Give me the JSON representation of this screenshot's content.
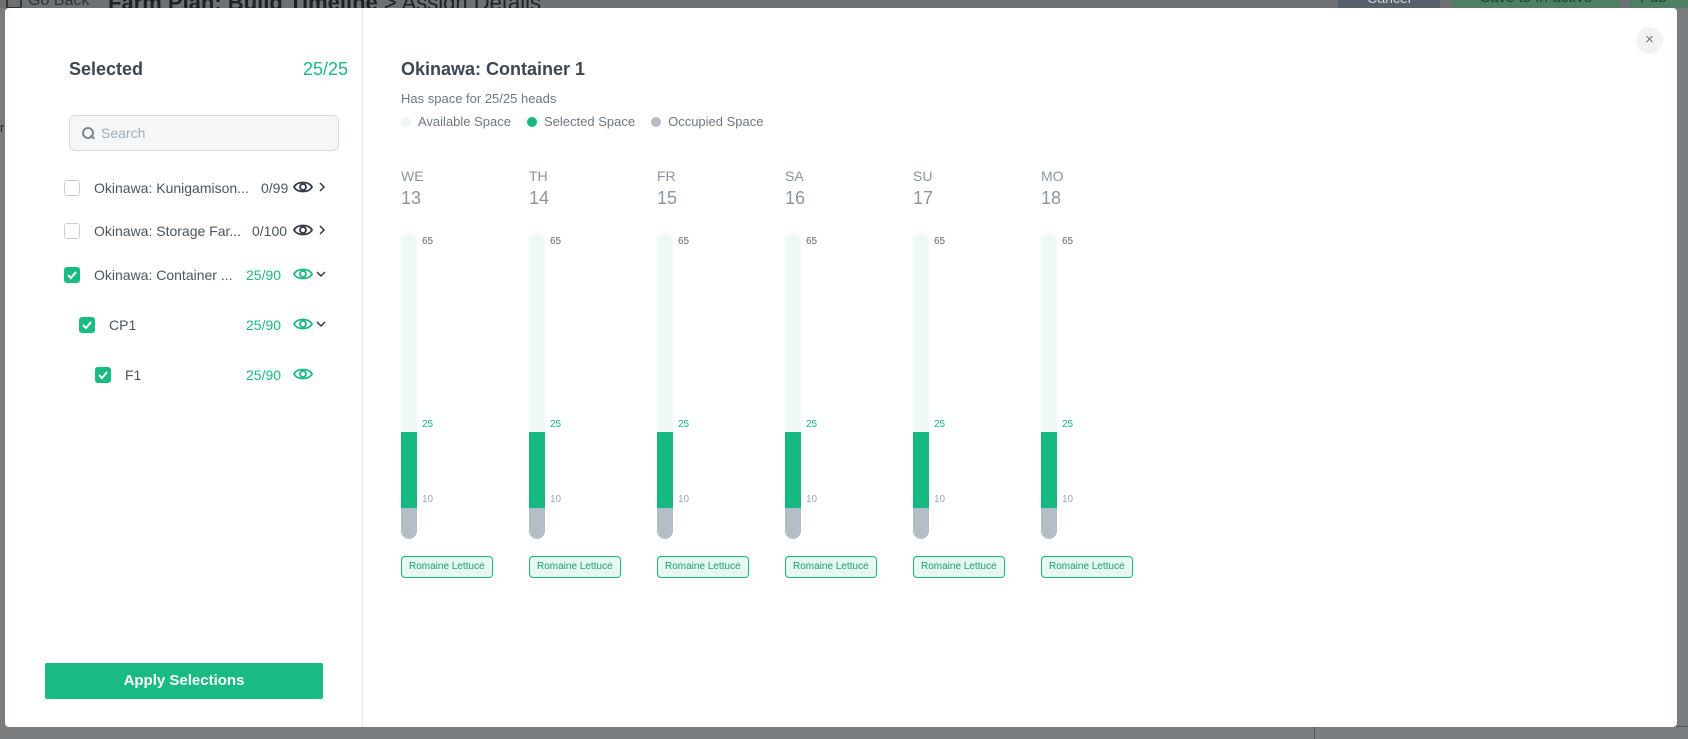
{
  "background": {
    "go_back": "Go Back",
    "title_bold": "Farm Plan: Build Timeline",
    "title_rest": " > Assign Details",
    "cancel": "Cancel",
    "save": "Save to In-active",
    "publish": "Pub",
    "edge_text": "r"
  },
  "modal": {
    "close": "×",
    "left": {
      "title": "Selected",
      "count": "25/25",
      "search_placeholder": "Search",
      "items": [
        {
          "label": "Okinawa: Kunigamison...",
          "count": "0/99",
          "checked": false,
          "expanded": false
        },
        {
          "label": "Okinawa: Storage Far...",
          "count": "0/100",
          "checked": false,
          "expanded": false
        },
        {
          "label": "Okinawa: Container ...",
          "count": "25/90",
          "checked": true,
          "expanded": true
        },
        {
          "label": "CP1",
          "count": "25/90",
          "checked": true,
          "expanded": true
        },
        {
          "label": "F1",
          "count": "25/90",
          "checked": true,
          "expanded": false
        }
      ],
      "apply": "Apply Selections"
    },
    "right": {
      "title": "Okinawa: Container 1",
      "subtitle": "Has space for 25/25 heads",
      "legend": [
        {
          "label": "Available Space",
          "color": "#eef8f5"
        },
        {
          "label": "Selected Space",
          "color": "#15b981"
        },
        {
          "label": "Occupied Space",
          "color": "#b5bec7"
        }
      ],
      "days": [
        {
          "abbr": "WE",
          "num": "13",
          "max": "65",
          "selected": "25",
          "occupied": "10",
          "crop": "Romaine Lettuce"
        },
        {
          "abbr": "TH",
          "num": "14",
          "max": "65",
          "selected": "25",
          "occupied": "10",
          "crop": "Romaine Lettuce"
        },
        {
          "abbr": "FR",
          "num": "15",
          "max": "65",
          "selected": "25",
          "occupied": "10",
          "crop": "Romaine Lettuce"
        },
        {
          "abbr": "SA",
          "num": "16",
          "max": "65",
          "selected": "25",
          "occupied": "10",
          "crop": "Romaine Lettuce"
        },
        {
          "abbr": "SU",
          "num": "17",
          "max": "65",
          "selected": "25",
          "occupied": "10",
          "crop": "Romaine Lettuce"
        },
        {
          "abbr": "MO",
          "num": "18",
          "max": "65",
          "selected": "25",
          "occupied": "10",
          "crop": "Romaine Lettuce"
        }
      ]
    }
  }
}
